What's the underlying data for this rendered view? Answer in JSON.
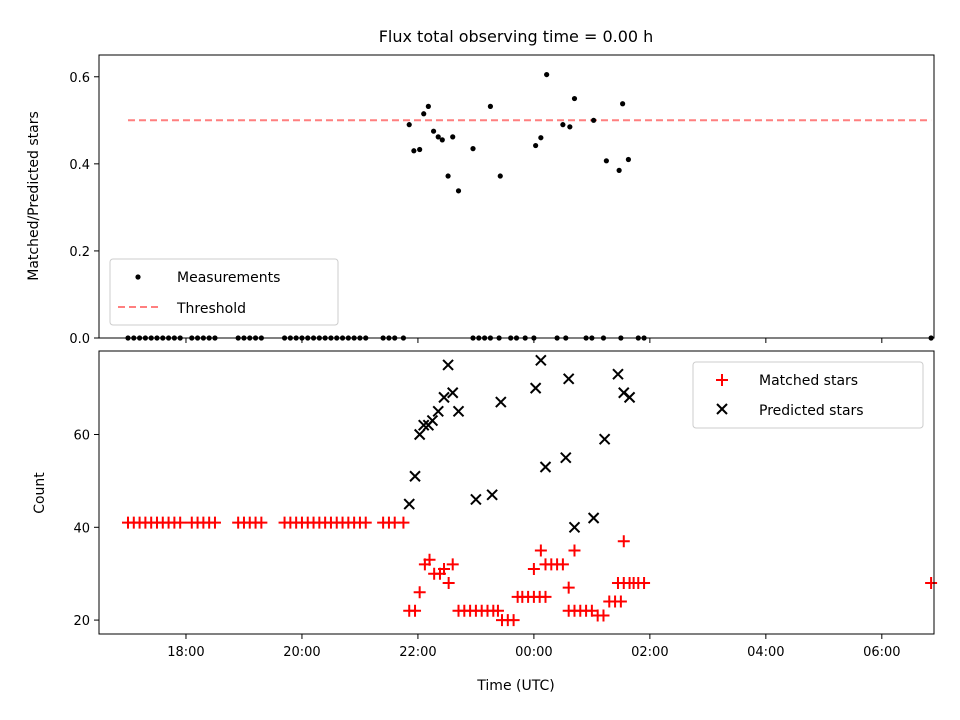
{
  "chart_data": [
    {
      "type": "scatter",
      "title": "Flux total observing time = 0.00 h",
      "xlabel": "",
      "ylabel": "Matched/Predicted stars",
      "xlim_hours": [
        16.5,
        30.9
      ],
      "ylim": [
        0,
        0.65
      ],
      "yticks": [
        0.0,
        0.2,
        0.4,
        0.6
      ],
      "ytick_labels": [
        "0.0",
        "0.2",
        "0.4",
        "0.6"
      ],
      "legend_position": "lower-left",
      "grid": false,
      "series": [
        {
          "name": "Measurements",
          "marker": "dot",
          "color": "#000000",
          "points": [
            [
              17.0,
              0
            ],
            [
              17.1,
              0
            ],
            [
              17.2,
              0
            ],
            [
              17.3,
              0
            ],
            [
              17.4,
              0
            ],
            [
              17.5,
              0
            ],
            [
              17.6,
              0
            ],
            [
              17.7,
              0
            ],
            [
              17.8,
              0
            ],
            [
              17.9,
              0
            ],
            [
              18.1,
              0
            ],
            [
              18.2,
              0
            ],
            [
              18.3,
              0
            ],
            [
              18.4,
              0
            ],
            [
              18.5,
              0
            ],
            [
              18.9,
              0
            ],
            [
              19.0,
              0
            ],
            [
              19.1,
              0
            ],
            [
              19.2,
              0
            ],
            [
              19.3,
              0
            ],
            [
              19.7,
              0
            ],
            [
              19.8,
              0
            ],
            [
              19.9,
              0
            ],
            [
              20.0,
              0
            ],
            [
              20.1,
              0
            ],
            [
              20.2,
              0
            ],
            [
              20.3,
              0
            ],
            [
              20.4,
              0
            ],
            [
              20.5,
              0
            ],
            [
              20.6,
              0
            ],
            [
              20.7,
              0
            ],
            [
              20.8,
              0
            ],
            [
              20.9,
              0
            ],
            [
              21.0,
              0
            ],
            [
              21.1,
              0
            ],
            [
              21.4,
              0
            ],
            [
              21.5,
              0
            ],
            [
              21.6,
              0
            ],
            [
              21.75,
              0
            ],
            [
              21.85,
              0.49
            ],
            [
              21.93,
              0.43
            ],
            [
              22.03,
              0.433
            ],
            [
              22.1,
              0.515
            ],
            [
              22.18,
              0.532
            ],
            [
              22.27,
              0.475
            ],
            [
              22.35,
              0.462
            ],
            [
              22.42,
              0.455
            ],
            [
              22.52,
              0.372
            ],
            [
              22.6,
              0.462
            ],
            [
              22.7,
              0.338
            ],
            [
              22.95,
              0
            ],
            [
              23.05,
              0
            ],
            [
              23.15,
              0
            ],
            [
              23.25,
              0
            ],
            [
              23.4,
              0
            ],
            [
              23.6,
              0
            ],
            [
              23.7,
              0
            ],
            [
              23.85,
              0
            ],
            [
              24.0,
              0
            ],
            [
              24.4,
              0
            ],
            [
              24.55,
              0
            ],
            [
              24.9,
              0
            ],
            [
              25.0,
              0
            ],
            [
              25.2,
              0
            ],
            [
              25.5,
              0
            ],
            [
              25.8,
              0
            ],
            [
              25.9,
              0
            ],
            [
              22.95,
              0.435
            ],
            [
              23.25,
              0.532
            ],
            [
              23.42,
              0.372
            ],
            [
              24.03,
              0.442
            ],
            [
              24.12,
              0.46
            ],
            [
              24.22,
              0.605
            ],
            [
              24.5,
              0.49
            ],
            [
              24.62,
              0.485
            ],
            [
              24.7,
              0.55
            ],
            [
              25.03,
              0.5
            ],
            [
              25.25,
              0.407
            ],
            [
              25.47,
              0.385
            ],
            [
              25.53,
              0.538
            ],
            [
              25.63,
              0.41
            ],
            [
              30.85,
              0
            ]
          ]
        }
      ],
      "threshold": {
        "name": "Threshold",
        "y": 0.5,
        "x_start": 17.0,
        "x_end": 30.85,
        "color": "#ff7f7f"
      }
    },
    {
      "type": "scatter",
      "title": "",
      "xlabel": "Time (UTC)",
      "ylabel": "Count",
      "xlim_hours": [
        16.5,
        30.9
      ],
      "ylim": [
        17,
        78
      ],
      "yticks": [
        20,
        40,
        60
      ],
      "ytick_labels": [
        "20",
        "40",
        "60"
      ],
      "xticks_hours": [
        18,
        20,
        22,
        24,
        26,
        28,
        30
      ],
      "xtick_labels": [
        "18:00",
        "20:00",
        "22:00",
        "00:00",
        "02:00",
        "04:00",
        "06:00"
      ],
      "legend_position": "top-right",
      "grid": false,
      "series": [
        {
          "name": "Matched stars",
          "marker": "plus",
          "color": "#ff0000",
          "points": [
            [
              17.0,
              41
            ],
            [
              17.1,
              41
            ],
            [
              17.2,
              41
            ],
            [
              17.3,
              41
            ],
            [
              17.4,
              41
            ],
            [
              17.5,
              41
            ],
            [
              17.6,
              41
            ],
            [
              17.7,
              41
            ],
            [
              17.8,
              41
            ],
            [
              17.9,
              41
            ],
            [
              18.1,
              41
            ],
            [
              18.2,
              41
            ],
            [
              18.3,
              41
            ],
            [
              18.4,
              41
            ],
            [
              18.5,
              41
            ],
            [
              18.9,
              41
            ],
            [
              19.0,
              41
            ],
            [
              19.1,
              41
            ],
            [
              19.2,
              41
            ],
            [
              19.3,
              41
            ],
            [
              19.7,
              41
            ],
            [
              19.8,
              41
            ],
            [
              19.9,
              41
            ],
            [
              20.0,
              41
            ],
            [
              20.1,
              41
            ],
            [
              20.2,
              41
            ],
            [
              20.3,
              41
            ],
            [
              20.4,
              41
            ],
            [
              20.5,
              41
            ],
            [
              20.6,
              41
            ],
            [
              20.7,
              41
            ],
            [
              20.8,
              41
            ],
            [
              20.9,
              41
            ],
            [
              21.0,
              41
            ],
            [
              21.1,
              41
            ],
            [
              21.4,
              41
            ],
            [
              21.5,
              41
            ],
            [
              21.6,
              41
            ],
            [
              21.75,
              41
            ],
            [
              21.85,
              22
            ],
            [
              21.95,
              22
            ],
            [
              22.03,
              26
            ],
            [
              22.12,
              32
            ],
            [
              22.2,
              33
            ],
            [
              22.28,
              30
            ],
            [
              22.38,
              30
            ],
            [
              22.45,
              31
            ],
            [
              22.53,
              28
            ],
            [
              22.6,
              32
            ],
            [
              22.7,
              22
            ],
            [
              22.8,
              22
            ],
            [
              22.9,
              22
            ],
            [
              23.0,
              22
            ],
            [
              23.1,
              22
            ],
            [
              23.2,
              22
            ],
            [
              23.3,
              22
            ],
            [
              23.38,
              22
            ],
            [
              23.45,
              20
            ],
            [
              23.55,
              20
            ],
            [
              23.65,
              20
            ],
            [
              23.72,
              25
            ],
            [
              23.8,
              25
            ],
            [
              23.9,
              25
            ],
            [
              24.0,
              25
            ],
            [
              24.1,
              25
            ],
            [
              24.2,
              25
            ],
            [
              24.0,
              31
            ],
            [
              24.12,
              35
            ],
            [
              24.2,
              32
            ],
            [
              24.3,
              32
            ],
            [
              24.4,
              32
            ],
            [
              24.5,
              32
            ],
            [
              24.6,
              27
            ],
            [
              24.7,
              35
            ],
            [
              24.6,
              22
            ],
            [
              24.7,
              22
            ],
            [
              24.8,
              22
            ],
            [
              24.9,
              22
            ],
            [
              25.0,
              22
            ],
            [
              25.1,
              21
            ],
            [
              25.2,
              21
            ],
            [
              25.3,
              24
            ],
            [
              25.4,
              24
            ],
            [
              25.5,
              24
            ],
            [
              25.45,
              28
            ],
            [
              25.55,
              28
            ],
            [
              25.65,
              28
            ],
            [
              25.72,
              28
            ],
            [
              25.8,
              28
            ],
            [
              25.9,
              28
            ],
            [
              25.55,
              37
            ],
            [
              30.85,
              28
            ]
          ]
        },
        {
          "name": "Predicted stars",
          "marker": "x",
          "color": "#000000",
          "points": [
            [
              21.85,
              45
            ],
            [
              21.95,
              51
            ],
            [
              22.03,
              60
            ],
            [
              22.1,
              62
            ],
            [
              22.18,
              62
            ],
            [
              22.25,
              63
            ],
            [
              22.35,
              65
            ],
            [
              22.45,
              68
            ],
            [
              22.52,
              75
            ],
            [
              22.6,
              69
            ],
            [
              22.7,
              65
            ],
            [
              23.0,
              46
            ],
            [
              23.28,
              47
            ],
            [
              23.43,
              67
            ],
            [
              24.03,
              70
            ],
            [
              24.12,
              76
            ],
            [
              24.2,
              53
            ],
            [
              24.55,
              55
            ],
            [
              24.6,
              72
            ],
            [
              24.7,
              40
            ],
            [
              25.03,
              42
            ],
            [
              25.22,
              59
            ],
            [
              25.45,
              73
            ],
            [
              25.55,
              69
            ],
            [
              25.65,
              68
            ]
          ]
        }
      ]
    }
  ]
}
